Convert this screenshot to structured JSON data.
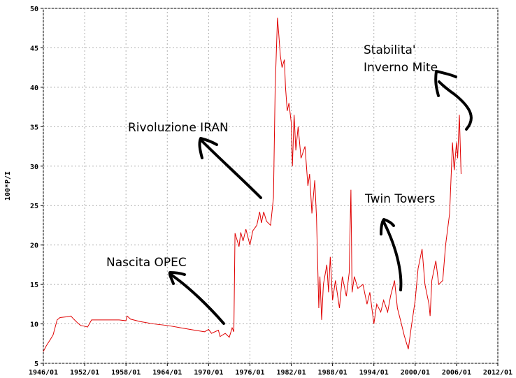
{
  "chart_data": {
    "type": "line",
    "ylabel": "100*P/I",
    "xlim": [
      "1946/01",
      "2012/01"
    ],
    "xticks": [
      "1946/01",
      "1952/01",
      "1958/01",
      "1964/01",
      "1970/01",
      "1976/01",
      "1982/01",
      "1988/01",
      "1994/01",
      "2000/01",
      "2006/01",
      "2012/01"
    ],
    "ylim": [
      5,
      50
    ],
    "yticks": [
      5,
      10,
      15,
      20,
      25,
      30,
      35,
      40,
      45,
      50
    ],
    "grid": true,
    "color": "#e00000",
    "x": [
      "1946/01",
      "1946/06",
      "1947/01",
      "1947/06",
      "1948/01",
      "1948/06",
      "1949/06",
      "1950/01",
      "1950/06",
      "1951/01",
      "1951/06",
      "1952/01",
      "1952/06",
      "1953/01",
      "1955/01",
      "1957/01",
      "1958/01",
      "1958/03",
      "1958/09",
      "1960/01",
      "1962/01",
      "1964/01",
      "1966/01",
      "1968/01",
      "1969/06",
      "1970/01",
      "1970/06",
      "1971/06",
      "1971/09",
      "1972/06",
      "1973/01",
      "1973/06",
      "1973/09",
      "1973/11",
      "1974/06",
      "1974/09",
      "1975/01",
      "1975/06",
      "1976/01",
      "1976/06",
      "1977/01",
      "1977/06",
      "1977/09",
      "1978/01",
      "1978/06",
      "1979/01",
      "1979/06",
      "1979/09",
      "1980/01",
      "1980/03",
      "1980/06",
      "1980/09",
      "1981/01",
      "1981/03",
      "1981/06",
      "1981/09",
      "1982/01",
      "1982/03",
      "1982/06",
      "1982/09",
      "1983/01",
      "1983/06",
      "1984/01",
      "1984/06",
      "1984/09",
      "1985/01",
      "1985/06",
      "1985/09",
      "1986/01",
      "1986/03",
      "1986/06",
      "1986/09",
      "1987/03",
      "1987/06",
      "1987/09",
      "1988/01",
      "1988/06",
      "1989/01",
      "1989/06",
      "1990/01",
      "1990/06",
      "1990/09",
      "1990/11",
      "1991/03",
      "1991/09",
      "1992/06",
      "1993/01",
      "1993/06",
      "1994/01",
      "1994/06",
      "1995/01",
      "1995/06",
      "1996/01",
      "1996/06",
      "1997/01",
      "1997/06",
      "1998/01",
      "1998/06",
      "1999/01",
      "1999/06",
      "2000/01",
      "2000/06",
      "2001/01",
      "2001/06",
      "2002/01",
      "2002/03",
      "2002/06",
      "2003/01",
      "2003/06",
      "2004/01",
      "2004/06",
      "2005/01",
      "2005/06",
      "2005/09",
      "2006/01",
      "2006/03",
      "2006/06",
      "2006/09"
    ],
    "values": [
      6.5,
      7.2,
      8.0,
      8.6,
      10.5,
      10.8,
      10.9,
      11.0,
      10.6,
      10.1,
      9.8,
      9.7,
      9.6,
      10.5,
      10.5,
      10.5,
      10.4,
      11.0,
      10.6,
      10.3,
      10.0,
      9.8,
      9.5,
      9.2,
      9.0,
      9.3,
      8.8,
      9.2,
      8.4,
      8.8,
      8.3,
      9.5,
      9.0,
      21.5,
      19.8,
      21.6,
      20.5,
      22.0,
      20.0,
      21.8,
      22.5,
      24.2,
      22.8,
      24.2,
      23.0,
      22.5,
      26.0,
      40.0,
      48.8,
      47.0,
      44.0,
      42.5,
      43.5,
      40.0,
      37.0,
      38.0,
      35.5,
      30.0,
      36.5,
      32.0,
      35.0,
      31.0,
      32.5,
      27.5,
      29.0,
      24.0,
      28.2,
      23.5,
      12.0,
      16.0,
      10.5,
      15.0,
      17.5,
      14.0,
      18.5,
      13.0,
      15.5,
      12.0,
      16.0,
      13.5,
      16.5,
      27.0,
      14.0,
      16.0,
      14.5,
      15.0,
      12.5,
      14.0,
      10.0,
      12.5,
      11.5,
      13.0,
      11.5,
      13.5,
      15.5,
      12.0,
      10.0,
      8.5,
      6.8,
      9.5,
      13.0,
      17.0,
      19.5,
      15.0,
      12.5,
      11.0,
      15.5,
      18.0,
      15.0,
      15.5,
      20.0,
      24.0,
      33.0,
      29.5,
      33.0,
      31.0,
      36.5,
      29.0
    ],
    "annotations": [
      "Nascita OPEC",
      "Rivoluzione IRAN",
      "Twin Towers",
      "Stabilita'",
      "Inverno Mite"
    ]
  }
}
